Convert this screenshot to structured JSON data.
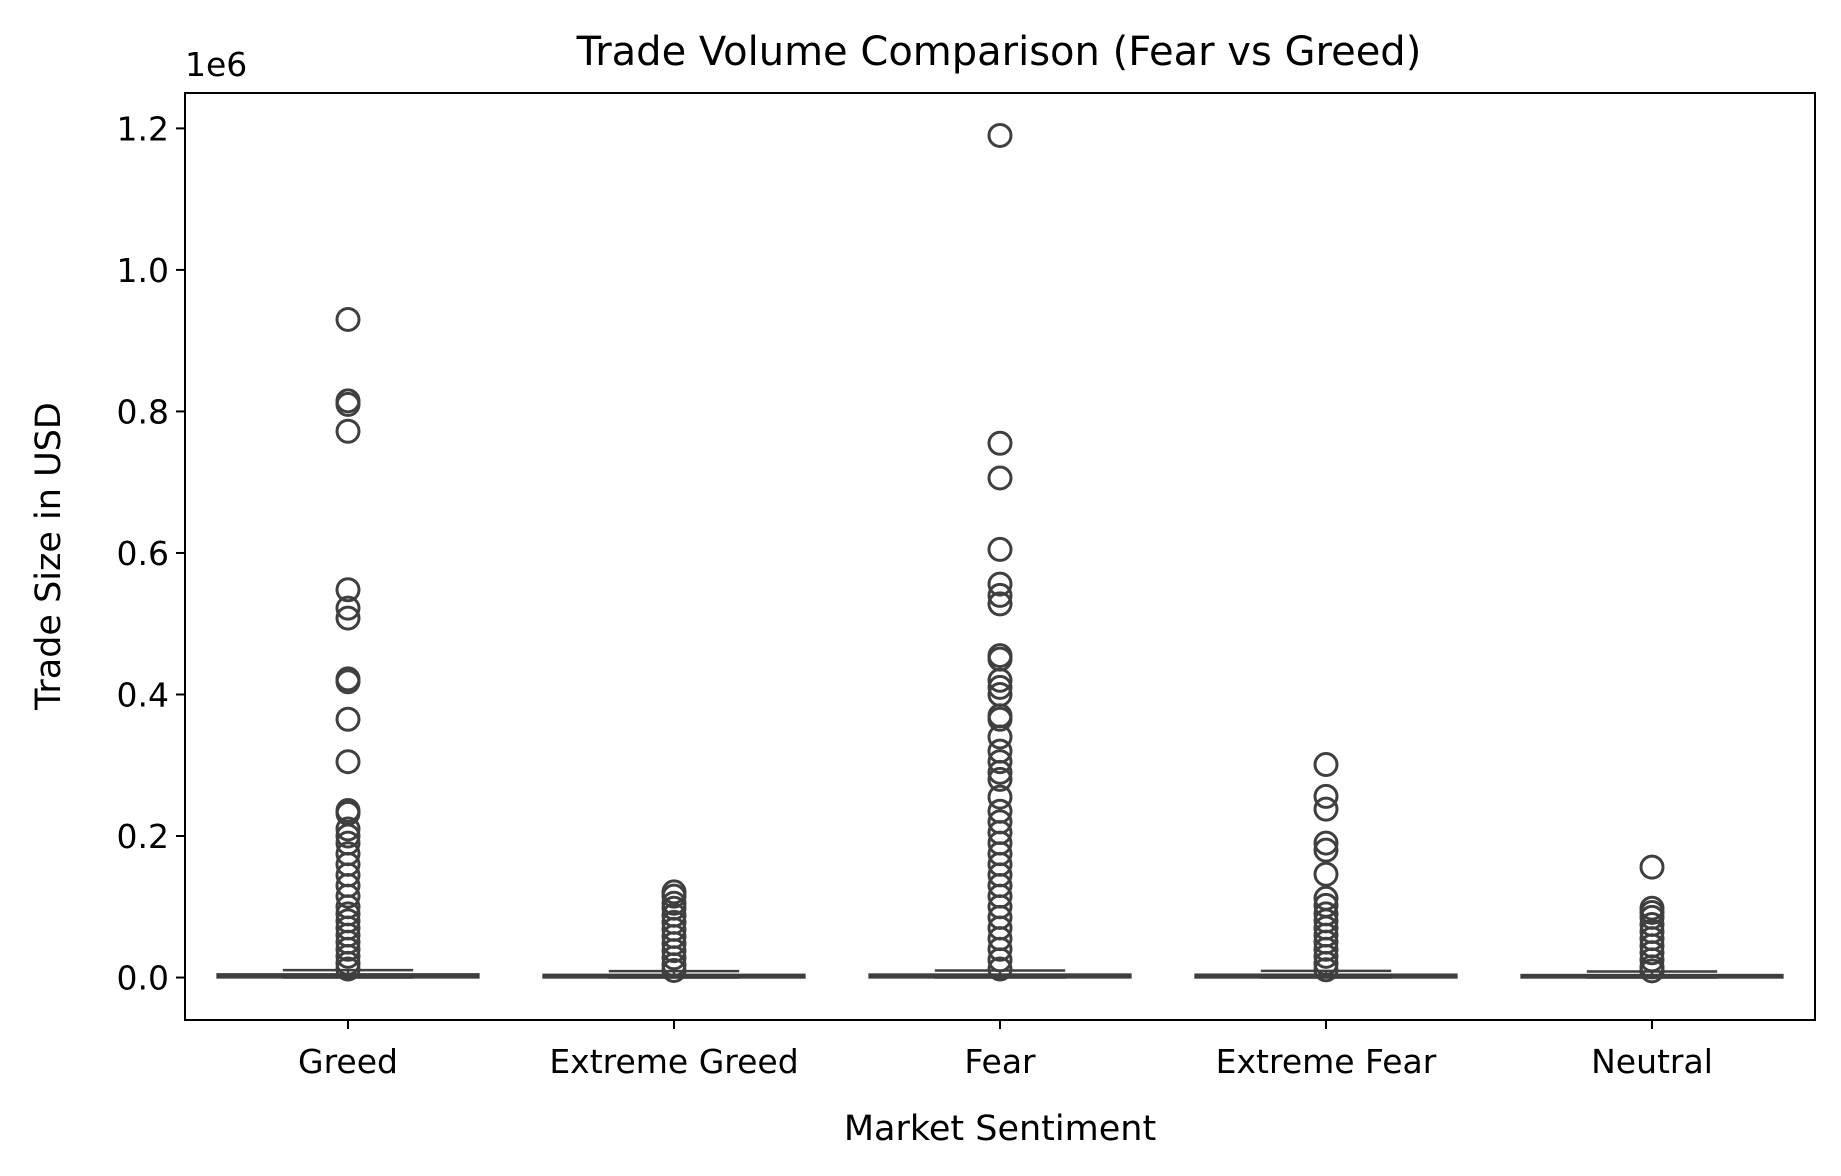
{
  "chart_data": {
    "type": "box",
    "title": "Trade Volume Comparison (Fear vs Greed)",
    "xlabel": "Market Sentiment",
    "ylabel": "Trade Size in USD",
    "scale_label": "1e6",
    "ylim": [
      -60000,
      1250000
    ],
    "yticks": [
      0,
      200000,
      400000,
      600000,
      800000,
      1000000,
      1200000
    ],
    "ytick_labels": [
      "0.0",
      "0.2",
      "0.4",
      "0.6",
      "0.8",
      "1.0",
      "1.2"
    ],
    "categories": [
      "Greed",
      "Extreme Greed",
      "Fear",
      "Extreme Fear",
      "Neutral"
    ],
    "grid": false,
    "colors": {
      "box": "#3f3f3f",
      "axis": "#000000"
    },
    "series": [
      {
        "category": "Greed",
        "whisker_low": 0,
        "q1": 200,
        "median": 1300,
        "q3": 4500,
        "whisker_high": 10500,
        "outliers": [
          930000,
          815000,
          810000,
          772000,
          548000,
          522000,
          508000,
          422000,
          418000,
          365000,
          305000,
          236000,
          232000,
          210000,
          200000,
          190000,
          175000,
          160000,
          145000,
          130000,
          115000,
          100000,
          90000,
          80000,
          70000,
          60000,
          50000,
          40000,
          30000,
          20000,
          12000
        ]
      },
      {
        "category": "Extreme Greed",
        "whisker_low": 0,
        "q1": 150,
        "median": 900,
        "q3": 3800,
        "whisker_high": 9000,
        "outliers": [
          121000,
          115000,
          105000,
          98000,
          88000,
          78000,
          68000,
          58000,
          48000,
          38000,
          28000,
          18000,
          10000
        ]
      },
      {
        "category": "Fear",
        "whisker_low": 0,
        "q1": 200,
        "median": 1100,
        "q3": 4200,
        "whisker_high": 10000,
        "outliers": [
          1190000,
          755000,
          706000,
          605000,
          556000,
          540000,
          528000,
          455000,
          450000,
          420000,
          410000,
          400000,
          370000,
          365000,
          340000,
          320000,
          305000,
          290000,
          280000,
          255000,
          235000,
          220000,
          205000,
          190000,
          175000,
          160000,
          145000,
          130000,
          115000,
          100000,
          85000,
          70000,
          55000,
          40000,
          25000,
          12000
        ]
      },
      {
        "category": "Extreme Fear",
        "whisker_low": 0,
        "q1": 150,
        "median": 1000,
        "q3": 4000,
        "whisker_high": 9500,
        "outliers": [
          301000,
          256000,
          238000,
          190000,
          180000,
          146000,
          112000,
          102000,
          90000,
          80000,
          70000,
          60000,
          50000,
          40000,
          30000,
          20000,
          11000
        ]
      },
      {
        "category": "Neutral",
        "whisker_low": 0,
        "q1": 150,
        "median": 900,
        "q3": 3500,
        "whisker_high": 8500,
        "outliers": [
          156000,
          98000,
          92000,
          85000,
          75000,
          65000,
          55000,
          45000,
          35000,
          25000,
          15000,
          9500
        ]
      }
    ]
  }
}
